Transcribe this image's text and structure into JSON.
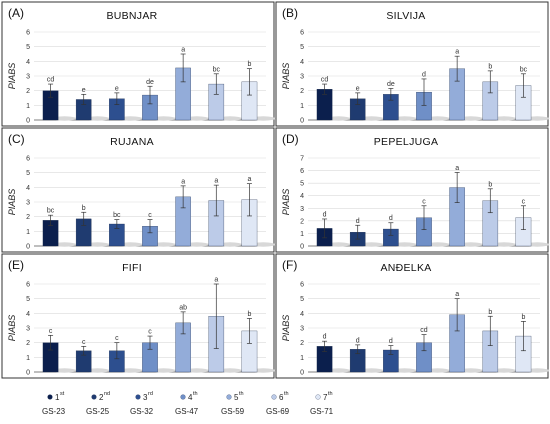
{
  "chart_data": [
    {
      "type": "bar",
      "panel": "(A)",
      "title": "BUBNJAR",
      "ylabel": "PIABS",
      "ylim": [
        0,
        6
      ],
      "yticks": [
        0,
        1,
        2,
        3,
        4,
        5,
        6
      ],
      "categories": [
        "GS-23",
        "GS-25",
        "GS-32",
        "GS-47",
        "GS-59",
        "GS-69",
        "GS-71"
      ],
      "values": [
        2.0,
        1.4,
        1.45,
        1.7,
        3.55,
        2.45,
        2.6
      ],
      "errors": [
        0.45,
        0.35,
        0.4,
        0.6,
        0.95,
        0.7,
        0.9
      ],
      "labels": [
        "cd",
        "e",
        "e",
        "de",
        "a",
        "bc",
        "b"
      ]
    },
    {
      "type": "bar",
      "panel": "(B)",
      "title": "SILVIJA",
      "ylabel": "PIABS",
      "ylim": [
        0,
        6
      ],
      "yticks": [
        0,
        1,
        2,
        3,
        4,
        5,
        6
      ],
      "categories": [
        "GS-23",
        "GS-25",
        "GS-32",
        "GS-47",
        "GS-59",
        "GS-69",
        "GS-71"
      ],
      "values": [
        2.1,
        1.45,
        1.75,
        1.9,
        3.5,
        2.6,
        2.35
      ],
      "errors": [
        0.35,
        0.4,
        0.4,
        0.9,
        0.85,
        0.75,
        0.8
      ],
      "labels": [
        "cd",
        "e",
        "de",
        "d",
        "a",
        "b",
        "bc"
      ]
    },
    {
      "type": "bar",
      "panel": "(C)",
      "title": "RUJANA",
      "ylabel": "PIABS",
      "ylim": [
        0,
        6
      ],
      "yticks": [
        0,
        1,
        2,
        3,
        4,
        5,
        6
      ],
      "categories": [
        "GS-23",
        "GS-25",
        "GS-32",
        "GS-47",
        "GS-59",
        "GS-69",
        "GS-71"
      ],
      "values": [
        1.75,
        1.85,
        1.5,
        1.35,
        3.35,
        3.1,
        3.15
      ],
      "errors": [
        0.35,
        0.45,
        0.3,
        0.45,
        0.75,
        1.05,
        1.1
      ],
      "labels": [
        "bc",
        "b",
        "bc",
        "c",
        "a",
        "a",
        "a"
      ]
    },
    {
      "type": "bar",
      "panel": "(D)",
      "title": "PEPELJUGA",
      "ylabel": "PIABS",
      "ylim": [
        0,
        7
      ],
      "yticks": [
        0,
        1,
        2,
        3,
        4,
        5,
        6,
        7
      ],
      "categories": [
        "GS-23",
        "GS-25",
        "GS-32",
        "GS-47",
        "GS-59",
        "GS-69",
        "GS-71"
      ],
      "values": [
        1.4,
        1.1,
        1.35,
        2.25,
        4.65,
        3.6,
        2.25
      ],
      "errors": [
        0.75,
        0.55,
        0.5,
        0.95,
        1.2,
        0.95,
        0.95
      ],
      "labels": [
        "d",
        "d",
        "d",
        "c",
        "a",
        "b",
        "c"
      ]
    },
    {
      "type": "bar",
      "panel": "(E)",
      "title": "FIFI",
      "ylabel": "PIABS",
      "ylim": [
        0,
        6
      ],
      "yticks": [
        0,
        1,
        2,
        3,
        4,
        5,
        6
      ],
      "categories": [
        "GS-23",
        "GS-25",
        "GS-32",
        "GS-47",
        "GS-59",
        "GS-69",
        "GS-71"
      ],
      "values": [
        2.0,
        1.45,
        1.45,
        2.0,
        3.35,
        3.8,
        2.8
      ],
      "errors": [
        0.5,
        0.3,
        0.55,
        0.45,
        0.75,
        2.2,
        0.85
      ],
      "labels": [
        "c",
        "c",
        "c",
        "c",
        "ab",
        "a",
        "b"
      ]
    },
    {
      "type": "bar",
      "panel": "(F)",
      "title": "ANĐELKA",
      "ylabel": "PIABS",
      "ylim": [
        0,
        6
      ],
      "yticks": [
        0,
        1,
        2,
        3,
        4,
        5,
        6
      ],
      "categories": [
        "GS-23",
        "GS-25",
        "GS-32",
        "GS-47",
        "GS-59",
        "GS-69",
        "GS-71"
      ],
      "values": [
        1.75,
        1.55,
        1.5,
        2.0,
        3.9,
        2.8,
        2.45
      ],
      "errors": [
        0.35,
        0.3,
        0.3,
        0.55,
        1.1,
        1.0,
        1.0
      ],
      "labels": [
        "d",
        "d",
        "d",
        "cd",
        "a",
        "b",
        "b"
      ]
    }
  ],
  "legend": {
    "items": [
      {
        "n": "1",
        "sup": "st",
        "stage": "GS-23",
        "color": "#0b1f4d"
      },
      {
        "n": "2",
        "sup": "nd",
        "stage": "GS-25",
        "color": "#1f3b70"
      },
      {
        "n": "3",
        "sup": "rd",
        "stage": "GS-32",
        "color": "#2d4f8f"
      },
      {
        "n": "4",
        "sup": "th",
        "stage": "GS-47",
        "color": "#6f8fc7"
      },
      {
        "n": "5",
        "sup": "th",
        "stage": "GS-59",
        "color": "#93acd9"
      },
      {
        "n": "6",
        "sup": "th",
        "stage": "GS-69",
        "color": "#bccbe8"
      },
      {
        "n": "7",
        "sup": "th",
        "stage": "GS-71",
        "color": "#dfe7f5"
      }
    ]
  }
}
